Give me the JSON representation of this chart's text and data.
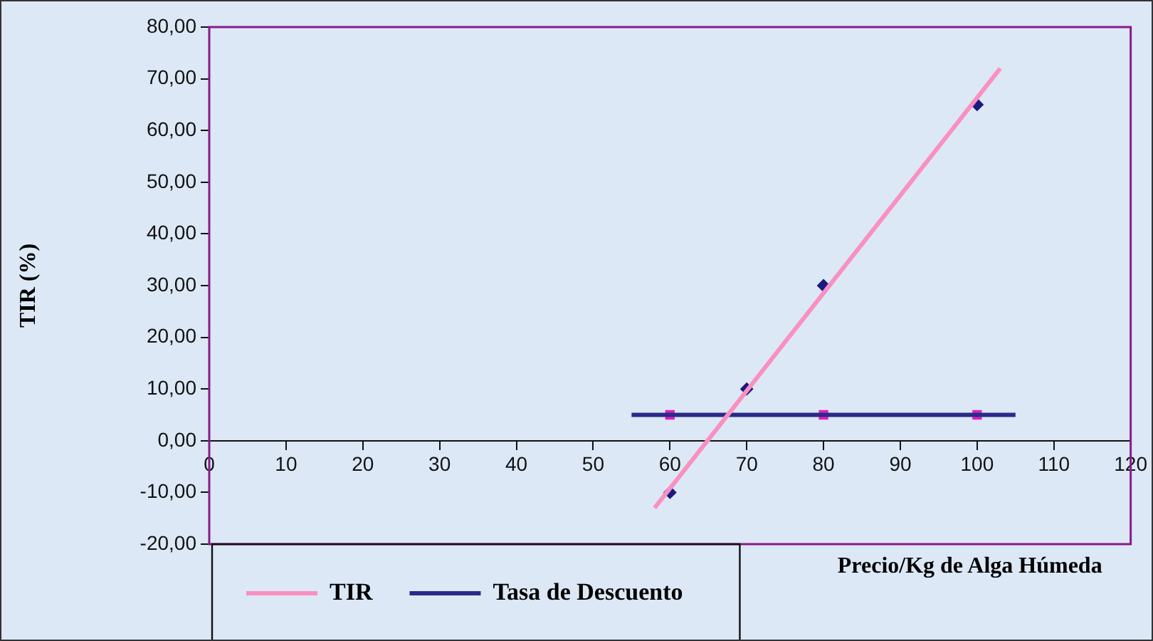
{
  "chart_data": {
    "type": "scatter",
    "xlabel": "Precio/Kg de Alga Húmeda",
    "ylabel": "TIR (%)",
    "xlim": [
      0,
      120
    ],
    "xticks": [
      0,
      10,
      20,
      30,
      40,
      50,
      60,
      70,
      80,
      90,
      100,
      110,
      120
    ],
    "ylim": [
      -20,
      80
    ],
    "yticks": [
      {
        "value": -20,
        "label": "-20,00"
      },
      {
        "value": -10,
        "label": "-10,00"
      },
      {
        "value": 0,
        "label": "0,00"
      },
      {
        "value": 10,
        "label": "10,00"
      },
      {
        "value": 20,
        "label": "20,00"
      },
      {
        "value": 30,
        "label": "30,00"
      },
      {
        "value": 40,
        "label": "40,00"
      },
      {
        "value": 50,
        "label": "50,00"
      },
      {
        "value": 60,
        "label": "60,00"
      },
      {
        "value": 70,
        "label": "70,00"
      },
      {
        "value": 80,
        "label": "80,00"
      }
    ],
    "grid": false,
    "legend": "bottom left",
    "series": [
      {
        "type": "line",
        "name": "TIR",
        "color": "#f990c0",
        "x": [
          58,
          103
        ],
        "values": [
          -13,
          72
        ],
        "marker": "none"
      },
      {
        "type": "line",
        "name": "Tasa de Descuento",
        "color": "#2a2a8a",
        "x": [
          55,
          105
        ],
        "values": [
          5,
          5
        ],
        "marker": "none"
      },
      {
        "type": "scatter",
        "color": "#1a1a80",
        "x": [
          60,
          70,
          80,
          100
        ],
        "values": [
          -10,
          10,
          30,
          65
        ],
        "marker": "diamond"
      },
      {
        "type": "scatter",
        "color": "#e020c0",
        "x": [
          60,
          80,
          100
        ],
        "values": [
          5,
          5,
          5
        ],
        "marker": "square"
      }
    ]
  }
}
